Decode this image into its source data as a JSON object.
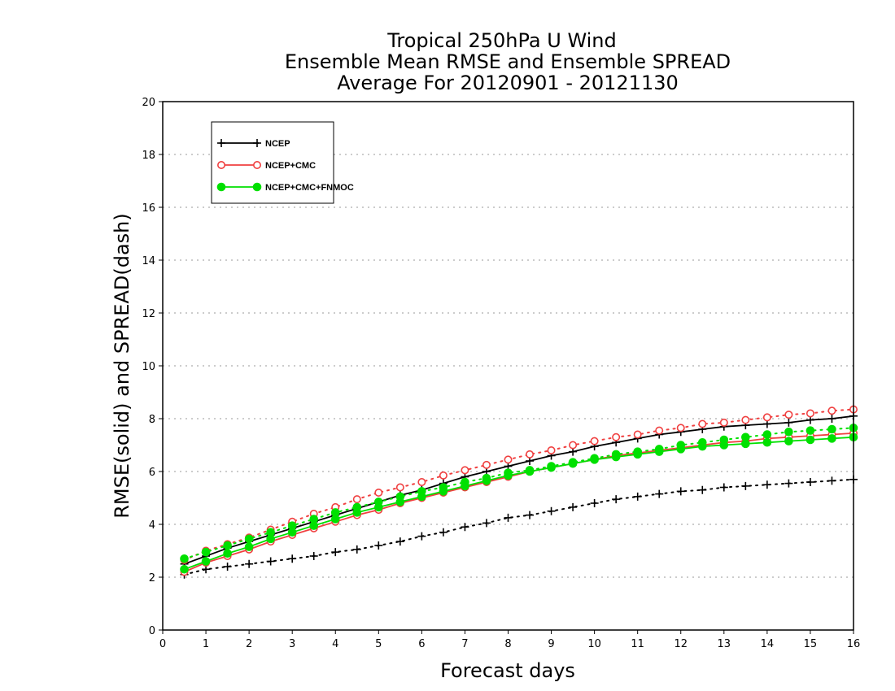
{
  "chart_data": {
    "type": "line",
    "title": [
      "Tropical 250hPa U Wind",
      "Ensemble Mean RMSE and Ensemble SPREAD",
      "Average For 20120901 - 20121130"
    ],
    "xlabel": "Forecast days",
    "ylabel": "RMSE(solid) and SPREAD(dash)",
    "xlim": [
      0,
      16
    ],
    "ylim": [
      0,
      20
    ],
    "xticks": [
      0,
      1,
      2,
      3,
      4,
      5,
      6,
      7,
      8,
      9,
      10,
      11,
      12,
      13,
      14,
      15,
      16
    ],
    "yticks": [
      0,
      2,
      4,
      6,
      8,
      10,
      12,
      14,
      16,
      18,
      20
    ],
    "grid": "horizontal dotted",
    "legend_position": "top-left",
    "x": [
      0.5,
      1,
      1.5,
      2,
      2.5,
      3,
      3.5,
      4,
      4.5,
      5,
      5.5,
      6,
      6.5,
      7,
      7.5,
      8,
      8.5,
      9,
      9.5,
      10,
      10.5,
      11,
      11.5,
      12,
      12.5,
      13,
      13.5,
      14,
      14.5,
      15,
      15.5,
      16
    ],
    "series": [
      {
        "name": "NCEP",
        "color": "#000000",
        "marker": "plus",
        "rmse": [
          2.5,
          2.8,
          3.1,
          3.35,
          3.6,
          3.85,
          4.1,
          4.35,
          4.6,
          4.85,
          5.1,
          5.3,
          5.55,
          5.8,
          6.0,
          6.2,
          6.4,
          6.6,
          6.75,
          6.95,
          7.1,
          7.25,
          7.4,
          7.5,
          7.6,
          7.7,
          7.75,
          7.8,
          7.85,
          7.95,
          8.0,
          8.1
        ],
        "spread": [
          2.1,
          2.3,
          2.4,
          2.5,
          2.6,
          2.7,
          2.8,
          2.95,
          3.05,
          3.2,
          3.35,
          3.55,
          3.7,
          3.9,
          4.05,
          4.25,
          4.35,
          4.5,
          4.65,
          4.8,
          4.95,
          5.05,
          5.15,
          5.25,
          5.3,
          5.4,
          5.45,
          5.5,
          5.55,
          5.6,
          5.65,
          5.7
        ]
      },
      {
        "name": "NCEP+CMC",
        "color": "#f04040",
        "marker": "open-circle",
        "rmse": [
          2.2,
          2.55,
          2.8,
          3.05,
          3.35,
          3.6,
          3.85,
          4.1,
          4.35,
          4.55,
          4.8,
          5.0,
          5.2,
          5.4,
          5.6,
          5.8,
          6.0,
          6.15,
          6.3,
          6.45,
          6.6,
          6.7,
          6.8,
          6.9,
          7.0,
          7.1,
          7.15,
          7.25,
          7.3,
          7.35,
          7.4,
          7.45
        ],
        "spread": [
          2.65,
          3.0,
          3.25,
          3.5,
          3.8,
          4.1,
          4.4,
          4.65,
          4.95,
          5.2,
          5.4,
          5.6,
          5.85,
          6.05,
          6.25,
          6.45,
          6.65,
          6.8,
          7.0,
          7.15,
          7.3,
          7.4,
          7.55,
          7.65,
          7.8,
          7.85,
          7.95,
          8.05,
          8.15,
          8.2,
          8.3,
          8.35
        ]
      },
      {
        "name": "NCEP+CMC+FNMOC",
        "color": "#00e000",
        "marker": "filled-circle",
        "rmse": [
          2.3,
          2.6,
          2.9,
          3.15,
          3.45,
          3.7,
          3.95,
          4.2,
          4.45,
          4.65,
          4.85,
          5.05,
          5.25,
          5.45,
          5.65,
          5.85,
          6.0,
          6.15,
          6.3,
          6.45,
          6.55,
          6.65,
          6.75,
          6.85,
          6.95,
          7.0,
          7.05,
          7.1,
          7.15,
          7.2,
          7.25,
          7.3
        ],
        "spread": [
          2.7,
          2.95,
          3.2,
          3.45,
          3.7,
          3.95,
          4.2,
          4.45,
          4.65,
          4.85,
          5.05,
          5.25,
          5.4,
          5.6,
          5.75,
          5.95,
          6.05,
          6.2,
          6.35,
          6.5,
          6.65,
          6.75,
          6.85,
          7.0,
          7.1,
          7.2,
          7.3,
          7.4,
          7.5,
          7.55,
          7.6,
          7.65
        ]
      }
    ]
  }
}
